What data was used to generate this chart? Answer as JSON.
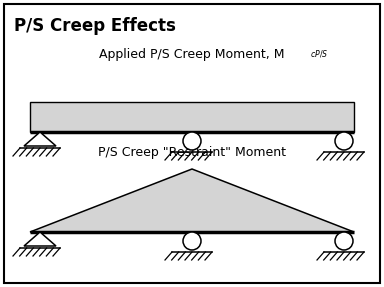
{
  "title": "P/S Creep Effects",
  "upper_label": "Applied P/S Creep Moment, M",
  "upper_label_sub": "$_{cP/S}$",
  "lower_label": "P/S Creep \"Restraint\" Moment",
  "bg_color": "#ffffff",
  "fill_color": "#d4d4d4",
  "title_fontsize": 12,
  "label_fontsize": 9,
  "figsize": [
    3.84,
    2.87
  ],
  "dpi": 100
}
